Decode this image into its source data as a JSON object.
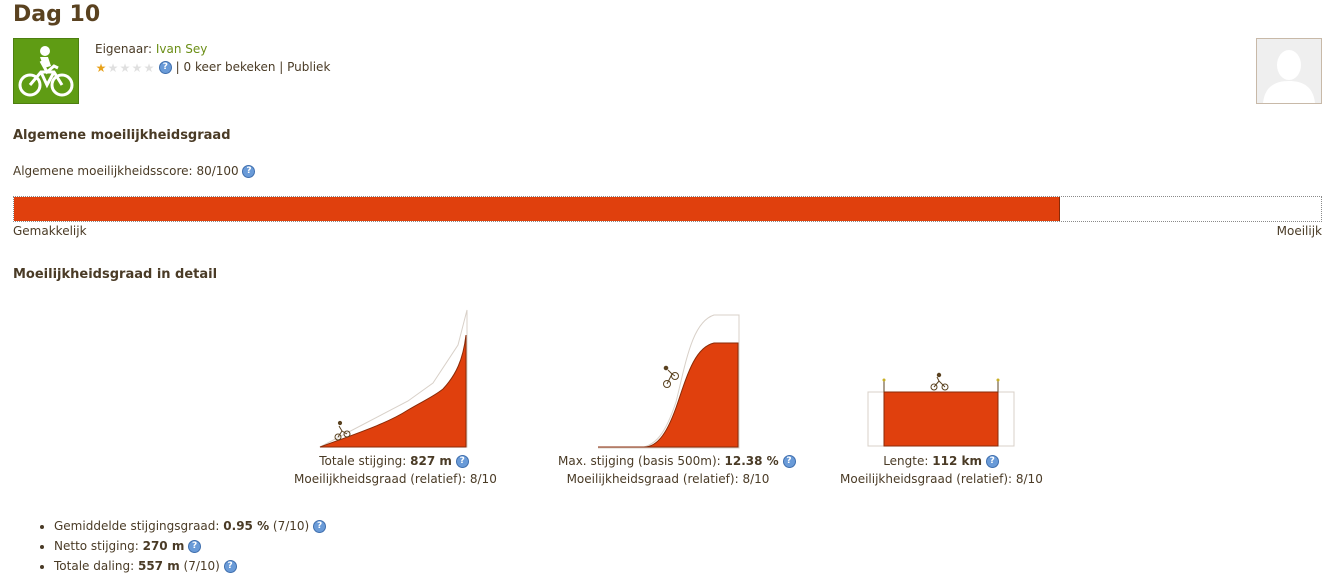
{
  "page": {
    "title": "Dag 10"
  },
  "owner": {
    "label": "Eigenaar:",
    "name": "Ivan Sey"
  },
  "rating": {
    "stars": 1,
    "max_stars": 5
  },
  "stats": {
    "views": "0 keer bekeken",
    "separator": "|",
    "visibility": "Publiek"
  },
  "overall": {
    "heading": "Algemene moeilijkheidsgraad",
    "score_label": "Algemene moeilijkheidsscore:",
    "score_value": "80/100",
    "score_fraction": 0.8,
    "left_label": "Gemakkelijk",
    "right_label": "Moeilijk",
    "fill_color": "#e0400d"
  },
  "detail": {
    "heading": "Moeilijkheidsgraad in detail",
    "items": [
      {
        "label": "Totale stijging:",
        "value": "827 m",
        "rel_label": "Moeilijkheidsgraad (relatief):",
        "rel_value": "8/10"
      },
      {
        "label": "Max. stijging (basis 500m):",
        "value": "12.38 %",
        "rel_label": "Moeilijkheidsgraad (relatief):",
        "rel_value": "8/10"
      },
      {
        "label": "Lengte:",
        "value": "112 km",
        "rel_label": "Moeilijkheidsgraad (relatief):",
        "rel_value": "8/10"
      }
    ]
  },
  "bullets": [
    {
      "label": "Gemiddelde stijgingsgraad:",
      "value": "0.95 %",
      "extra": "(7/10)"
    },
    {
      "label": "Netto stijging:",
      "value": "270 m",
      "extra": ""
    },
    {
      "label": "Totale daling:",
      "value": "557 m",
      "extra": "(7/10)"
    }
  ],
  "icons": {
    "activity": "cyclist-icon",
    "help": "help-icon",
    "avatar": "avatar-placeholder-icon"
  }
}
